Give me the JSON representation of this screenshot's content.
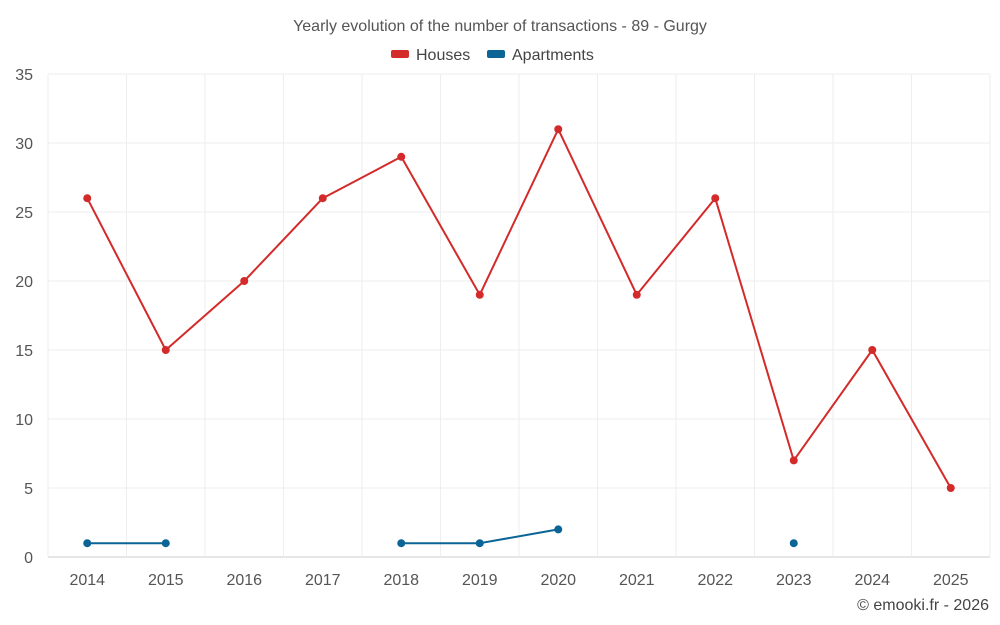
{
  "chart_data": {
    "type": "line",
    "title": "Yearly evolution of the number of transactions - 89 - Gurgy",
    "categories": [
      "2014",
      "2015",
      "2016",
      "2017",
      "2018",
      "2019",
      "2020",
      "2021",
      "2022",
      "2023",
      "2024",
      "2025"
    ],
    "ylim": [
      0,
      35
    ],
    "yticks": [
      0,
      5,
      10,
      15,
      20,
      25,
      30,
      35
    ],
    "grid": true,
    "legend_position": "top-center",
    "series": [
      {
        "name": "Houses",
        "color": "#d32a2a",
        "values": [
          26,
          15,
          20,
          26,
          29,
          19,
          31,
          19,
          26,
          7,
          15,
          5
        ]
      },
      {
        "name": "Apartments",
        "color": "#0a6496",
        "values": [
          1,
          1,
          null,
          null,
          1,
          1,
          2,
          null,
          null,
          1,
          null,
          null
        ]
      }
    ]
  },
  "credit": "© emooki.fr - 2026"
}
